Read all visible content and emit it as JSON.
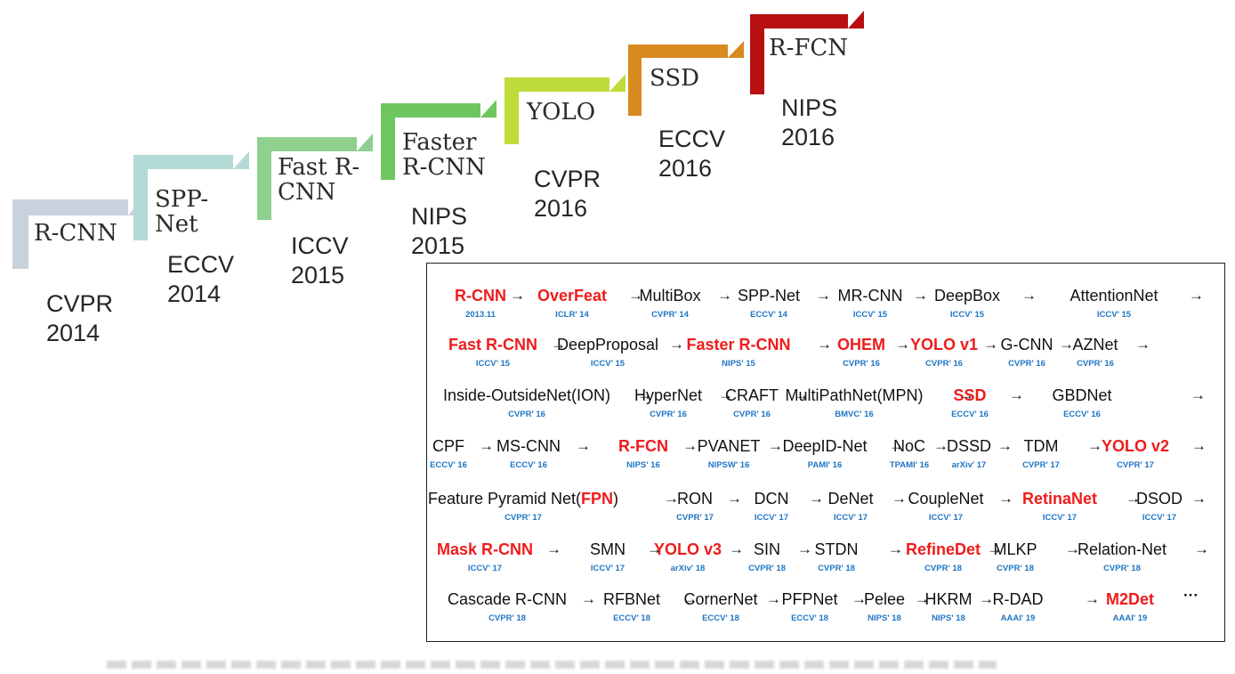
{
  "timeline": [
    {
      "name_lines": [
        "R-CNN"
      ],
      "venue": [
        "CVPR",
        "2014"
      ],
      "color": "#c9d2dc"
    },
    {
      "name_lines": [
        "SPP-",
        "Net"
      ],
      "venue": [
        "ECCV",
        "2014"
      ],
      "color": "#b3dad6"
    },
    {
      "name_lines": [
        "Fast R-",
        "CNN"
      ],
      "venue": [
        "ICCV",
        "2015"
      ],
      "color": "#8fd08f"
    },
    {
      "name_lines": [
        "Faster",
        "R-CNN"
      ],
      "venue": [
        "NIPS",
        "2015"
      ],
      "color": "#6fc65f"
    },
    {
      "name_lines": [
        "YOLO"
      ],
      "venue": [
        "CVPR",
        "2016"
      ],
      "color": "#bedc3a"
    },
    {
      "name_lines": [
        "SSD"
      ],
      "venue": [
        "ECCV",
        "2016"
      ],
      "color": "#d88a1e"
    },
    {
      "name_lines": [
        "R-FCN"
      ],
      "venue": [
        "NIPS",
        "2016"
      ],
      "color": "#b81010"
    }
  ],
  "methods": [
    [
      {
        "name": "R-CNN",
        "venue": "2013.11",
        "hl": true
      },
      {
        "name": "OverFeat",
        "venue": "ICLR' 14",
        "hl": true
      },
      {
        "name": "MultiBox",
        "venue": "CVPR' 14",
        "hl": false
      },
      {
        "name": "SPP-Net",
        "venue": "ECCV' 14",
        "hl": false
      },
      {
        "name": "MR-CNN",
        "venue": "ICCV' 15",
        "hl": false
      },
      {
        "name": "DeepBox",
        "venue": "ICCV' 15",
        "hl": false
      },
      {
        "name": "AttentionNet",
        "venue": "ICCV' 15",
        "hl": false
      }
    ],
    [
      {
        "name": "Fast R-CNN",
        "venue": "ICCV' 15",
        "hl": true
      },
      {
        "name": "DeepProposal",
        "venue": "ICCV' 15",
        "hl": false
      },
      {
        "name": "Faster R-CNN",
        "venue": "NIPS' 15",
        "hl": true
      },
      {
        "name": "OHEM",
        "venue": "CVPR' 16",
        "hl": true
      },
      {
        "name": "YOLO v1",
        "venue": "CVPR' 16",
        "hl": true
      },
      {
        "name": "G-CNN",
        "venue": "CVPR' 16",
        "hl": false
      },
      {
        "name": "AZNet",
        "venue": "CVPR' 16",
        "hl": false
      }
    ],
    [
      {
        "name": "Inside-OutsideNet(ION)",
        "venue": "CVPR' 16",
        "hl": false
      },
      {
        "name": "HyperNet",
        "venue": "CVPR' 16",
        "hl": false
      },
      {
        "name": "CRAFT",
        "venue": "CVPR' 16",
        "hl": false
      },
      {
        "name": "MultiPathNet(MPN)",
        "venue": "BMVC' 16",
        "hl": false
      },
      {
        "name": "SSD",
        "venue": "ECCV' 16",
        "hl": true
      },
      {
        "name": "GBDNet",
        "venue": "ECCV' 16",
        "hl": false
      }
    ],
    [
      {
        "name": "CPF",
        "venue": "ECCV' 16",
        "hl": false
      },
      {
        "name": "MS-CNN",
        "venue": "ECCV' 16",
        "hl": false
      },
      {
        "name": "R-FCN",
        "venue": "NIPS' 16",
        "hl": true
      },
      {
        "name": "PVANET",
        "venue": "NIPSW' 16",
        "hl": false
      },
      {
        "name": "DeepID-Net",
        "venue": "PAMI' 16",
        "hl": false
      },
      {
        "name": "NoC",
        "venue": "TPAMI' 16",
        "hl": false
      },
      {
        "name": "DSSD",
        "venue": "arXiv' 17",
        "hl": false
      },
      {
        "name": "TDM",
        "venue": "CVPR' 17",
        "hl": false
      },
      {
        "name": "YOLO v2",
        "venue": "CVPR' 17",
        "hl": true
      }
    ],
    [
      {
        "name_parts": [
          {
            "t": "Feature Pyramid Net(",
            "hl": false
          },
          {
            "t": "FPN",
            "hl": true
          },
          {
            "t": ")",
            "hl": false
          }
        ],
        "venue": "CVPR' 17"
      },
      {
        "name": "RON",
        "venue": "CVPR' 17",
        "hl": false
      },
      {
        "name": "DCN",
        "venue": "ICCV' 17",
        "hl": false
      },
      {
        "name": "DeNet",
        "venue": "ICCV' 17",
        "hl": false
      },
      {
        "name": "CoupleNet",
        "venue": "ICCV' 17",
        "hl": false
      },
      {
        "name": "RetinaNet",
        "venue": "ICCV' 17",
        "hl": true
      },
      {
        "name": "DSOD",
        "venue": "ICCV' 17",
        "hl": false
      }
    ],
    [
      {
        "name": "Mask R-CNN",
        "venue": "ICCV' 17",
        "hl": true
      },
      {
        "name": "SMN",
        "venue": "ICCV' 17",
        "hl": false
      },
      {
        "name": "YOLO v3",
        "venue": "arXiv' 18",
        "hl": true
      },
      {
        "name": "SIN",
        "venue": "CVPR' 18",
        "hl": false
      },
      {
        "name": "STDN",
        "venue": "CVPR' 18",
        "hl": false
      },
      {
        "name": "RefineDet",
        "venue": "CVPR' 18",
        "hl": true
      },
      {
        "name": "MLKP",
        "venue": "CVPR' 18",
        "hl": false
      },
      {
        "name": "Relation-Net",
        "venue": "CVPR' 18",
        "hl": false
      }
    ],
    [
      {
        "name": "Cascade R-CNN",
        "venue": "CVPR' 18",
        "hl": false
      },
      {
        "name": "RFBNet",
        "venue": "ECCV' 18",
        "hl": false
      },
      {
        "name": "CornerNet",
        "venue": "ECCV' 18",
        "hl": false
      },
      {
        "name": "PFPNet",
        "venue": "ECCV' 18",
        "hl": false
      },
      {
        "name": "Pelee",
        "venue": "NIPS' 18",
        "hl": false
      },
      {
        "name": "HKRM",
        "venue": "NIPS' 18",
        "hl": false
      },
      {
        "name": "R-DAD",
        "venue": "AAAI' 19",
        "hl": false
      },
      {
        "name": "M2Det",
        "venue": "AAAI' 19",
        "hl": true
      }
    ]
  ],
  "arrow": "→",
  "ellipsis": "···",
  "colors": {
    "highlight": "#ee1c1c",
    "venue": "#1f76c4"
  }
}
